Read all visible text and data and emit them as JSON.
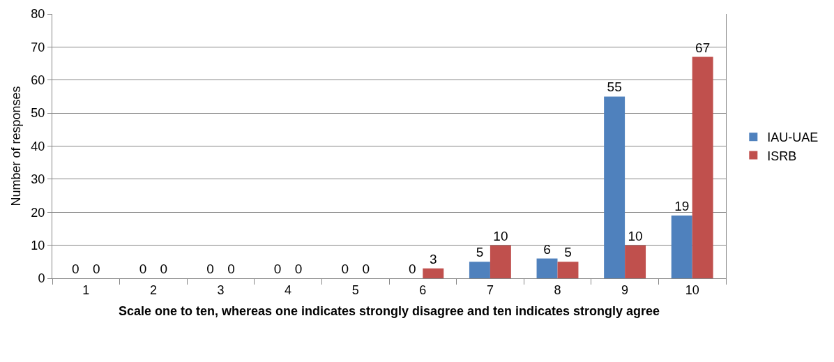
{
  "chart_data": {
    "type": "bar",
    "xlabel": "Scale one to ten, whereas one indicates strongly disagree and ten indicates strongly agree",
    "ylabel": "Number of responses",
    "categories": [
      "1",
      "2",
      "3",
      "4",
      "5",
      "6",
      "7",
      "8",
      "9",
      "10"
    ],
    "series": [
      {
        "name": "IAU-UAE",
        "color": "#4f81bd",
        "values": [
          0,
          0,
          0,
          0,
          0,
          0,
          5,
          6,
          55,
          19
        ]
      },
      {
        "name": "ISRB",
        "color": "#c0504d",
        "values": [
          0,
          0,
          0,
          0,
          0,
          3,
          10,
          5,
          10,
          67
        ]
      }
    ],
    "ylim": [
      0,
      80
    ],
    "yticks": [
      0,
      10,
      20,
      30,
      40,
      50,
      60,
      70,
      80
    ],
    "grid": "y",
    "legend": "right",
    "data_labels": true
  }
}
